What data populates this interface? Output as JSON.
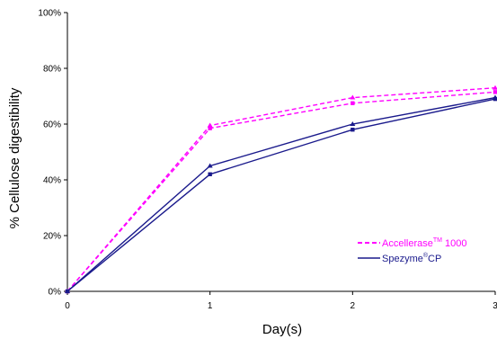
{
  "chart_data": {
    "type": "line",
    "xlabel": "Day(s)",
    "ylabel": "% Cellulose digestibility",
    "xlim": [
      0,
      3
    ],
    "ylim": [
      0,
      100
    ],
    "x_ticks": [
      "0",
      "1",
      "2",
      "3"
    ],
    "y_ticks": [
      "0%",
      "20%",
      "40%",
      "60%",
      "80%",
      "100%"
    ],
    "grid": false,
    "legend_position": "bottom-right",
    "colors": {
      "magenta": "#ff00ff",
      "navy": "#1a1a8c",
      "axis": "#000000"
    },
    "legend": [
      {
        "name": "Accellerase",
        "sup": "TM",
        "suffix": " 1000",
        "color": "#ff00ff",
        "style": "dashed"
      },
      {
        "name": "Spezyme",
        "sup": "®",
        "suffix": "CP",
        "color": "#1a1a8c",
        "style": "solid"
      }
    ],
    "series": [
      {
        "group": "Accellerase",
        "color": "#ff00ff",
        "dash": true,
        "marker": "triangle",
        "x": [
          0,
          1,
          2,
          3
        ],
        "y": [
          0,
          59.5,
          69.5,
          73
        ]
      },
      {
        "group": "Accellerase",
        "color": "#ff00ff",
        "dash": true,
        "marker": "square",
        "x": [
          0,
          1,
          2,
          3
        ],
        "y": [
          0,
          58.5,
          67.5,
          71.5
        ]
      },
      {
        "group": "Spezyme",
        "color": "#1a1a8c",
        "dash": false,
        "marker": "triangle",
        "x": [
          0,
          1,
          2,
          3
        ],
        "y": [
          0,
          45,
          60,
          69.5
        ]
      },
      {
        "group": "Spezyme",
        "color": "#1a1a8c",
        "dash": false,
        "marker": "square",
        "x": [
          0,
          1,
          2,
          3
        ],
        "y": [
          0,
          42,
          58,
          69
        ]
      }
    ]
  }
}
